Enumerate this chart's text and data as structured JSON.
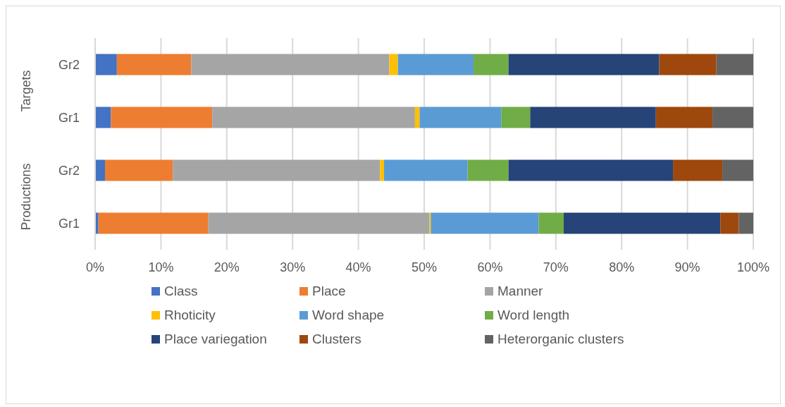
{
  "chart_data": {
    "type": "bar",
    "orientation": "horizontal",
    "stacked": true,
    "categories": [
      "Gr2",
      "Gr1",
      "Gr2",
      "Gr1"
    ],
    "annotations": [
      "Targets",
      "Productions"
    ],
    "series": [
      {
        "name": "Class",
        "color": "#4472c4",
        "values": [
          3.3,
          2.4,
          1.5,
          0.5
        ]
      },
      {
        "name": "Place",
        "color": "#ed7d31",
        "values": [
          11.3,
          15.4,
          10.3,
          16.7
        ]
      },
      {
        "name": "Manner",
        "color": "#a5a5a5",
        "values": [
          30.1,
          30.8,
          31.5,
          33.6
        ]
      },
      {
        "name": "Rhoticity",
        "color": "#ffc000",
        "values": [
          1.3,
          0.7,
          0.6,
          0.2
        ]
      },
      {
        "name": "Word shape",
        "color": "#5b9bd5",
        "values": [
          11.5,
          12.4,
          12.7,
          16.4
        ]
      },
      {
        "name": "Word length",
        "color": "#70ad47",
        "values": [
          5.3,
          4.4,
          6.2,
          3.8
        ]
      },
      {
        "name": "Place variegation",
        "color": "#264478",
        "values": [
          22.9,
          19.1,
          25.0,
          23.8
        ]
      },
      {
        "name": "Clusters",
        "color": "#9e480e",
        "values": [
          8.7,
          8.6,
          7.5,
          2.8
        ]
      },
      {
        "name": "Heterorganic clusters",
        "color": "#636363",
        "values": [
          5.6,
          6.2,
          4.7,
          2.2
        ]
      }
    ],
    "xlim": [
      0,
      100
    ],
    "xticks": [
      {
        "value": 0,
        "label": "0%"
      },
      {
        "value": 10,
        "label": "10%"
      },
      {
        "value": 20,
        "label": "20%"
      },
      {
        "value": 30,
        "label": "30%"
      },
      {
        "value": 40,
        "label": "40%"
      },
      {
        "value": 50,
        "label": "50%"
      },
      {
        "value": 60,
        "label": "60%"
      },
      {
        "value": 70,
        "label": "70%"
      },
      {
        "value": 80,
        "label": "80%"
      },
      {
        "value": 90,
        "label": "90%"
      },
      {
        "value": 100,
        "label": "100%"
      }
    ],
    "grid": "x",
    "legend": "bottom"
  }
}
